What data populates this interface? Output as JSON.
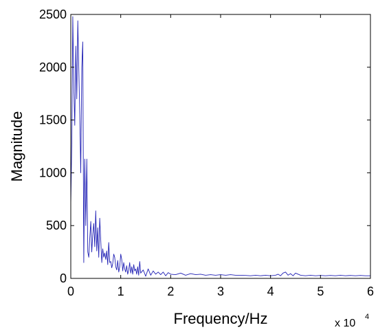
{
  "chart_data": {
    "type": "line",
    "title": "",
    "xlabel": "Frequency/Hz",
    "ylabel": "Magnitude",
    "x_multiplier": {
      "base": "x 10",
      "exponent": "4"
    },
    "xlim": [
      0,
      6
    ],
    "ylim": [
      0,
      2500
    ],
    "x_ticks": [
      0,
      1,
      2,
      3,
      4,
      5,
      6
    ],
    "x_tick_labels": [
      "0",
      "1",
      "2",
      "3",
      "4",
      "5",
      "6"
    ],
    "y_ticks": [
      0,
      500,
      1000,
      1500,
      2000,
      2500
    ],
    "y_tick_labels": [
      "0",
      "500",
      "1000",
      "1500",
      "2000",
      "2500"
    ],
    "grid": false,
    "series": [
      {
        "color": "#1f1fb4",
        "x": [
          0,
          0.02,
          0.04,
          0.06,
          0.08,
          0.1,
          0.12,
          0.14,
          0.16,
          0.18,
          0.2,
          0.22,
          0.24,
          0.26,
          0.28,
          0.3,
          0.32,
          0.34,
          0.36,
          0.38,
          0.4,
          0.42,
          0.44,
          0.46,
          0.48,
          0.5,
          0.52,
          0.54,
          0.56,
          0.58,
          0.6,
          0.62,
          0.64,
          0.66,
          0.68,
          0.7,
          0.72,
          0.74,
          0.76,
          0.78,
          0.8,
          0.82,
          0.84,
          0.86,
          0.88,
          0.9,
          0.92,
          0.94,
          0.96,
          0.98,
          1.0,
          1.02,
          1.04,
          1.06,
          1.08,
          1.1,
          1.12,
          1.14,
          1.16,
          1.18,
          1.2,
          1.22,
          1.24,
          1.26,
          1.28,
          1.3,
          1.32,
          1.34,
          1.36,
          1.38,
          1.4,
          1.45,
          1.5,
          1.55,
          1.6,
          1.65,
          1.7,
          1.75,
          1.8,
          1.85,
          1.9,
          1.95,
          2.0,
          2.1,
          2.2,
          2.3,
          2.4,
          2.5,
          2.6,
          2.7,
          2.8,
          2.9,
          3.0,
          3.1,
          3.2,
          3.3,
          3.4,
          3.5,
          3.6,
          3.7,
          3.8,
          3.9,
          4.0,
          4.1,
          4.15,
          4.2,
          4.25,
          4.3,
          4.35,
          4.4,
          4.45,
          4.5,
          4.6,
          4.7,
          4.8,
          4.9,
          5.0,
          5.1,
          5.2,
          5.3,
          5.4,
          5.5,
          5.6,
          5.7,
          5.8,
          5.9,
          6.0
        ],
        "y": [
          700,
          1300,
          2480,
          1800,
          1450,
          2200,
          1700,
          2440,
          2000,
          1550,
          1000,
          2000,
          2240,
          150,
          1130,
          500,
          1130,
          250,
          200,
          380,
          540,
          250,
          420,
          520,
          300,
          640,
          260,
          480,
          200,
          570,
          360,
          150,
          280,
          200,
          240,
          180,
          260,
          130,
          340,
          150,
          160,
          100,
          140,
          230,
          200,
          110,
          80,
          170,
          60,
          110,
          230,
          180,
          70,
          150,
          90,
          60,
          120,
          40,
          80,
          150,
          50,
          110,
          40,
          130,
          70,
          90,
          40,
          110,
          30,
          160,
          50,
          80,
          20,
          90,
          30,
          70,
          40,
          60,
          35,
          60,
          25,
          55,
          40,
          35,
          50,
          30,
          45,
          35,
          40,
          30,
          35,
          30,
          35,
          30,
          35,
          30,
          30,
          28,
          25,
          30,
          25,
          30,
          25,
          30,
          40,
          25,
          50,
          60,
          30,
          45,
          25,
          50,
          30,
          25,
          30,
          25,
          28,
          25,
          28,
          25,
          30,
          25,
          28,
          25,
          28,
          25,
          25
        ]
      }
    ]
  }
}
